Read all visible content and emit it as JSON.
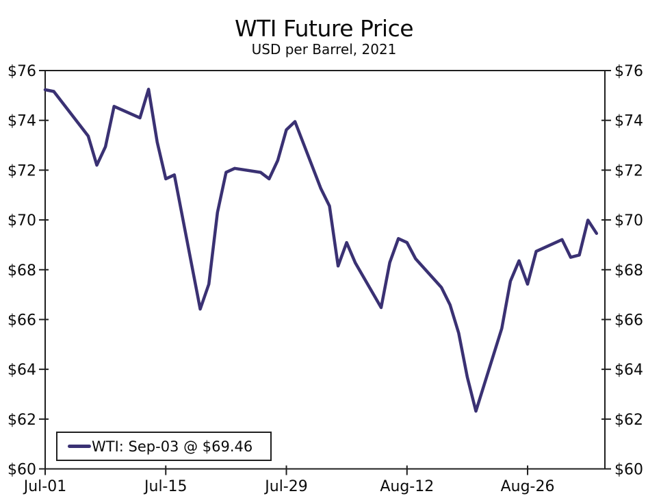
{
  "page": {
    "background": "#ffffff"
  },
  "chart_data": {
    "type": "line",
    "title": "WTI Future Price",
    "subtitle": "USD per Barrel, 2021",
    "xlabel": "",
    "ylabel": "",
    "ylim": [
      60,
      76
    ],
    "y_tick_step": 2,
    "grid": "off",
    "frame": "full box, y tick labels on both left and right sides, ticks cross the axes",
    "y_tick_values": [
      76,
      74,
      72,
      70,
      68,
      66,
      64,
      62,
      60
    ],
    "y_tick_labels": [
      "$76",
      "$74",
      "$72",
      "$70",
      "$68",
      "$66",
      "$64",
      "$62",
      "$60"
    ],
    "x_tick_labels": [
      "Jul-01",
      "Jul-15",
      "Jul-29",
      "Aug-12",
      "Aug-26"
    ],
    "legend_position": "inside bottom-left",
    "legend": {
      "label": "WTI: Sep-03 @ $69.46",
      "swatch_color": "#3a3173"
    },
    "axis_color": "#1f1f1f",
    "series": [
      {
        "name": "WTI",
        "color": "#3a3173",
        "points": [
          {
            "date": "Jul-01",
            "value": 75.23
          },
          {
            "date": "Jul-02",
            "value": 75.16
          },
          {
            "date": "Jul-06",
            "value": 73.37
          },
          {
            "date": "Jul-07",
            "value": 72.2
          },
          {
            "date": "Jul-08",
            "value": 72.94
          },
          {
            "date": "Jul-09",
            "value": 74.56
          },
          {
            "date": "Jul-12",
            "value": 74.1
          },
          {
            "date": "Jul-13",
            "value": 75.25
          },
          {
            "date": "Jul-14",
            "value": 73.13
          },
          {
            "date": "Jul-15",
            "value": 71.65
          },
          {
            "date": "Jul-16",
            "value": 71.81
          },
          {
            "date": "Jul-19",
            "value": 66.42
          },
          {
            "date": "Jul-20",
            "value": 67.42
          },
          {
            "date": "Jul-21",
            "value": 70.3
          },
          {
            "date": "Jul-22",
            "value": 71.91
          },
          {
            "date": "Jul-23",
            "value": 72.07
          },
          {
            "date": "Jul-26",
            "value": 71.91
          },
          {
            "date": "Jul-27",
            "value": 71.65
          },
          {
            "date": "Jul-28",
            "value": 72.39
          },
          {
            "date": "Jul-29",
            "value": 73.62
          },
          {
            "date": "Jul-30",
            "value": 73.95
          },
          {
            "date": "Aug-02",
            "value": 71.26
          },
          {
            "date": "Aug-03",
            "value": 70.56
          },
          {
            "date": "Aug-04",
            "value": 68.15
          },
          {
            "date": "Aug-05",
            "value": 69.09
          },
          {
            "date": "Aug-06",
            "value": 68.28
          },
          {
            "date": "Aug-09",
            "value": 66.48
          },
          {
            "date": "Aug-10",
            "value": 68.29
          },
          {
            "date": "Aug-11",
            "value": 69.25
          },
          {
            "date": "Aug-12",
            "value": 69.09
          },
          {
            "date": "Aug-13",
            "value": 68.44
          },
          {
            "date": "Aug-16",
            "value": 67.29
          },
          {
            "date": "Aug-17",
            "value": 66.59
          },
          {
            "date": "Aug-18",
            "value": 65.46
          },
          {
            "date": "Aug-19",
            "value": 63.69
          },
          {
            "date": "Aug-20",
            "value": 62.32
          },
          {
            "date": "Aug-23",
            "value": 65.64
          },
          {
            "date": "Aug-24",
            "value": 67.54
          },
          {
            "date": "Aug-25",
            "value": 68.36
          },
          {
            "date": "Aug-26",
            "value": 67.42
          },
          {
            "date": "Aug-27",
            "value": 68.74
          },
          {
            "date": "Aug-30",
            "value": 69.21
          },
          {
            "date": "Aug-31",
            "value": 68.5
          },
          {
            "date": "Sep-01",
            "value": 68.59
          },
          {
            "date": "Sep-02",
            "value": 69.99
          },
          {
            "date": "Sep-03",
            "value": 69.46
          }
        ]
      }
    ]
  }
}
